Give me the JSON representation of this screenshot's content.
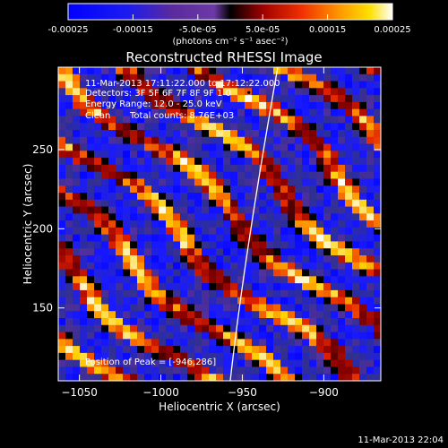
{
  "colorbar": {
    "tick_labels": [
      "-0.00025",
      "-0.00015",
      "-5.0e-05",
      "5.0e-05",
      "0.00015",
      "0.00025"
    ],
    "tick_values": [
      -0.00025,
      -0.00015,
      -5e-05,
      5e-05,
      0.00015,
      0.00025
    ],
    "range": [
      -0.00025,
      0.00025
    ],
    "unit_text": "(photons cm⁻² s⁻¹ asec⁻²)"
  },
  "chart_data": {
    "type": "heatmap",
    "title": "Reconstructed RHESSI Image",
    "xlabel": "Heliocentric X (arcsec)",
    "ylabel": "Heliocentric Y (arcsec)",
    "xlim": [
      -1063,
      -865
    ],
    "ylim": [
      104,
      302
    ],
    "x_ticks": [
      -1050,
      -1000,
      -950,
      -900
    ],
    "x_tick_labels": [
      "−1050",
      "−1000",
      "−950",
      "−900"
    ],
    "y_ticks": [
      150,
      200,
      250
    ],
    "y_tick_labels": [
      "150",
      "200",
      "250"
    ],
    "peak_position": [
      -946,
      286
    ],
    "colormap_stops": [
      "#0000ff",
      "#1a1aff",
      "#303090",
      "#4a2e9a",
      "#6a3aa8",
      "#000000",
      "#8a0000",
      "#e02000",
      "#ff8000",
      "#ffd000",
      "#ffffff"
    ],
    "limb_color": "#ffffff"
  },
  "annotations": {
    "line1": "11-Mar-2013 17:11:22.000 to 17:12:22.000",
    "line2": "Detectors: 3F 5F 6F 7F 8F 9F 1 0",
    "line3": "Energy Range: 12.0 - 25.0 keV",
    "line4_label": "Clean",
    "line4_counts": "Total counts: 8.76E+03",
    "peak": "Position of Peak = [-946,286]"
  },
  "footer": {
    "timestamp": "11-Mar-2013 22:04"
  }
}
